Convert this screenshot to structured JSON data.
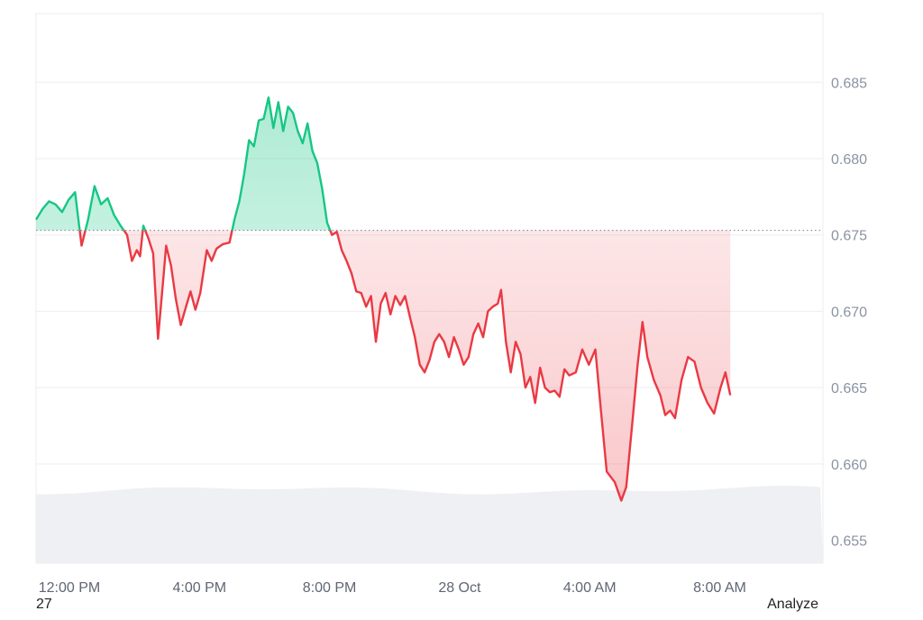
{
  "chart_data": {
    "type": "area",
    "baseline": 0.6753,
    "ylim": [
      0.6535,
      0.6895
    ],
    "y_ticks": [
      "0.685",
      "0.680",
      "0.675",
      "0.670",
      "0.665",
      "0.660",
      "0.655"
    ],
    "y_tick_values": [
      0.685,
      0.68,
      0.675,
      0.67,
      0.665,
      0.66,
      0.655
    ],
    "x_ticks": [
      "12:00 PM",
      "4:00 PM",
      "8:00 PM",
      "28 Oct",
      "4:00 AM",
      "8:00 AM"
    ],
    "x_tick_hours": [
      0,
      4,
      8,
      12,
      16,
      20
    ],
    "xlim_hours": [
      0,
      24.2
    ],
    "grid": true,
    "colors": {
      "above": "#16c784",
      "below": "#ea3943",
      "grid": "#eeeeee",
      "volume": "#eef0f3"
    },
    "series": [
      {
        "values": [
          [
            0.0,
            0.676
          ],
          [
            0.2,
            0.6767
          ],
          [
            0.4,
            0.6772
          ],
          [
            0.6,
            0.677
          ],
          [
            0.8,
            0.6765
          ],
          [
            1.0,
            0.6773
          ],
          [
            1.2,
            0.6778
          ],
          [
            1.4,
            0.6743
          ],
          [
            1.6,
            0.676
          ],
          [
            1.8,
            0.6782
          ],
          [
            2.0,
            0.677
          ],
          [
            2.2,
            0.6774
          ],
          [
            2.4,
            0.6763
          ],
          [
            2.6,
            0.6756
          ],
          [
            2.8,
            0.675
          ],
          [
            2.95,
            0.6733
          ],
          [
            3.1,
            0.674
          ],
          [
            3.2,
            0.6736
          ],
          [
            3.3,
            0.6756
          ],
          [
            3.45,
            0.6748
          ],
          [
            3.6,
            0.6738
          ],
          [
            3.75,
            0.6682
          ],
          [
            3.9,
            0.6718
          ],
          [
            4.0,
            0.6743
          ],
          [
            4.15,
            0.673
          ],
          [
            4.3,
            0.6708
          ],
          [
            4.45,
            0.6691
          ],
          [
            4.6,
            0.6702
          ],
          [
            4.75,
            0.6713
          ],
          [
            4.9,
            0.6701
          ],
          [
            5.05,
            0.6712
          ],
          [
            5.25,
            0.674
          ],
          [
            5.4,
            0.6733
          ],
          [
            5.55,
            0.6741
          ],
          [
            5.75,
            0.6744
          ],
          [
            5.95,
            0.6745
          ],
          [
            6.1,
            0.676
          ],
          [
            6.25,
            0.6772
          ],
          [
            6.4,
            0.679
          ],
          [
            6.55,
            0.6812
          ],
          [
            6.7,
            0.6808
          ],
          [
            6.85,
            0.6825
          ],
          [
            7.0,
            0.6826
          ],
          [
            7.15,
            0.684
          ],
          [
            7.3,
            0.682
          ],
          [
            7.45,
            0.6837
          ],
          [
            7.6,
            0.6818
          ],
          [
            7.75,
            0.6834
          ],
          [
            7.9,
            0.683
          ],
          [
            8.05,
            0.6818
          ],
          [
            8.2,
            0.681
          ],
          [
            8.35,
            0.6823
          ],
          [
            8.5,
            0.6805
          ],
          [
            8.65,
            0.6797
          ],
          [
            8.8,
            0.678
          ],
          [
            8.95,
            0.6758
          ],
          [
            9.1,
            0.675
          ],
          [
            9.25,
            0.6752
          ],
          [
            9.4,
            0.674
          ],
          [
            9.55,
            0.6733
          ],
          [
            9.7,
            0.6725
          ],
          [
            9.85,
            0.6713
          ],
          [
            10.0,
            0.6712
          ],
          [
            10.15,
            0.6703
          ],
          [
            10.3,
            0.671
          ],
          [
            10.45,
            0.668
          ],
          [
            10.6,
            0.6705
          ],
          [
            10.75,
            0.6712
          ],
          [
            10.9,
            0.6698
          ],
          [
            11.05,
            0.671
          ],
          [
            11.2,
            0.6704
          ],
          [
            11.35,
            0.671
          ],
          [
            11.5,
            0.6696
          ],
          [
            11.65,
            0.6683
          ],
          [
            11.8,
            0.6665
          ],
          [
            11.95,
            0.666
          ],
          [
            12.1,
            0.6668
          ],
          [
            12.25,
            0.668
          ],
          [
            12.4,
            0.6685
          ],
          [
            12.55,
            0.668
          ],
          [
            12.7,
            0.667
          ],
          [
            12.85,
            0.6683
          ],
          [
            13.0,
            0.6675
          ],
          [
            13.15,
            0.6665
          ],
          [
            13.3,
            0.667
          ],
          [
            13.45,
            0.6685
          ],
          [
            13.6,
            0.6692
          ],
          [
            13.75,
            0.6683
          ],
          [
            13.9,
            0.67
          ],
          [
            14.05,
            0.6703
          ],
          [
            14.2,
            0.6705
          ],
          [
            14.3,
            0.6714
          ],
          [
            14.45,
            0.668
          ],
          [
            14.6,
            0.666
          ],
          [
            14.75,
            0.668
          ],
          [
            14.9,
            0.6672
          ],
          [
            15.05,
            0.665
          ],
          [
            15.2,
            0.6657
          ],
          [
            15.35,
            0.664
          ],
          [
            15.5,
            0.6663
          ],
          [
            15.65,
            0.665
          ],
          [
            15.8,
            0.6647
          ],
          [
            15.95,
            0.6648
          ],
          [
            16.1,
            0.6644
          ],
          [
            16.25,
            0.6662
          ],
          [
            16.4,
            0.6658
          ],
          [
            16.6,
            0.666
          ],
          [
            16.8,
            0.6675
          ],
          [
            17.0,
            0.6665
          ],
          [
            17.2,
            0.6675
          ],
          [
            17.35,
            0.664
          ],
          [
            17.55,
            0.6595
          ],
          [
            17.8,
            0.6588
          ],
          [
            18.0,
            0.6576
          ],
          [
            18.15,
            0.6585
          ],
          [
            18.35,
            0.663
          ],
          [
            18.5,
            0.6665
          ],
          [
            18.65,
            0.6693
          ],
          [
            18.8,
            0.667
          ],
          [
            19.0,
            0.6655
          ],
          [
            19.2,
            0.6645
          ],
          [
            19.35,
            0.6632
          ],
          [
            19.5,
            0.6635
          ],
          [
            19.65,
            0.663
          ],
          [
            19.85,
            0.6655
          ],
          [
            20.05,
            0.667
          ],
          [
            20.25,
            0.6667
          ],
          [
            20.45,
            0.665
          ],
          [
            20.65,
            0.664
          ],
          [
            20.85,
            0.6633
          ],
          [
            21.05,
            0.665
          ],
          [
            21.2,
            0.666
          ],
          [
            21.35,
            0.6645
          ]
        ]
      }
    ]
  },
  "footer": {
    "left": "27",
    "right": "Analyze"
  }
}
